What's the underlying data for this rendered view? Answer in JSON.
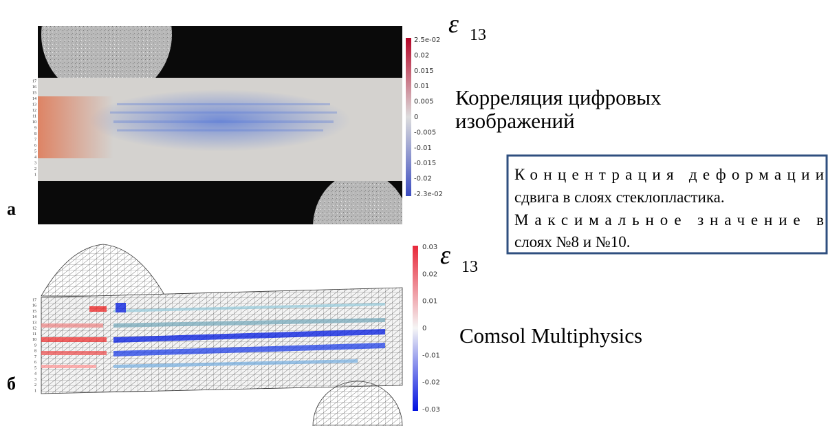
{
  "panel_a": {
    "letter": "а",
    "symbol": "ε",
    "subscript": "13",
    "colorbar_ticks": [
      "2.5e-02",
      "0.02",
      "0.015",
      "0.01",
      "0.005",
      "0",
      "-0.005",
      "-0.01",
      "-0.015",
      "-0.02",
      "-2.3e-02"
    ],
    "layers": [
      "1",
      "2",
      "3",
      "4",
      "5",
      "6",
      "7",
      "8",
      "9",
      "10",
      "11",
      "12",
      "13",
      "14",
      "15",
      "16",
      "17"
    ],
    "caption": [
      "Корреляция цифровых",
      "изображений"
    ]
  },
  "panel_b": {
    "letter": "б",
    "symbol": "ε",
    "subscript": "13",
    "colorbar_ticks": [
      "0.03",
      "0.02",
      "0.01",
      "0",
      "-0.01",
      "-0.02",
      "-0.03"
    ],
    "layers": [
      "1",
      "2",
      "3",
      "4",
      "5",
      "6",
      "7",
      "8",
      "9",
      "10",
      "11",
      "12",
      "13",
      "14",
      "15",
      "16",
      "17"
    ],
    "caption": "Comsol Multiphysics"
  },
  "note": {
    "lines": [
      "Концентрация деформации",
      "сдвига в слоях стеклопластика.",
      "Максимальное значение в",
      "слоях №8 и №10."
    ]
  }
}
